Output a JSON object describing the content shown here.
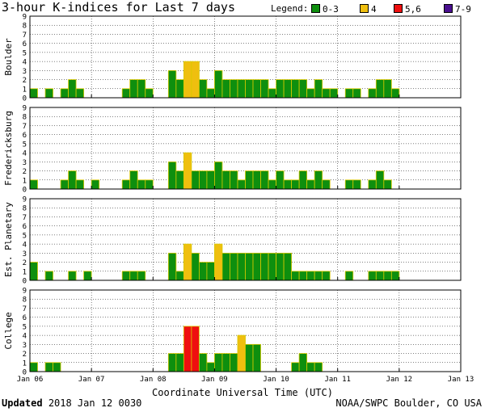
{
  "title": "3-hour K-indices for Last 7 days",
  "legend": {
    "label": "Legend:",
    "items": [
      {
        "text": "0-3",
        "color": "#0e8f0e"
      },
      {
        "text": "4",
        "color": "#efbf0f"
      },
      {
        "text": "5,6",
        "color": "#ef0f0f"
      },
      {
        "text": "7-9",
        "color": "#4a0f8f"
      }
    ]
  },
  "footer": {
    "updated_label": "Updated",
    "updated_value": "2018 Jan 12 0030",
    "credit": "NOAA/SWPC Boulder, CO USA"
  },
  "chart_data": {
    "type": "bar",
    "title": "3-hour K-indices for Last 7 days",
    "xlabel": "Coordinate Universal Time (UTC)",
    "ylim": [
      0,
      9
    ],
    "y_ticks": [
      "0",
      "1",
      "2",
      "3",
      "4",
      "5",
      "6",
      "7",
      "8",
      "9"
    ],
    "x_ticks": [
      "Jan 06",
      "Jan 07",
      "Jan 08",
      "Jan 09",
      "Jan 10",
      "Jan 11",
      "Jan 12",
      "Jan 13"
    ],
    "grid": true,
    "color_scale": [
      {
        "range": "0-3",
        "color": "#0e8f0e"
      },
      {
        "range": "4",
        "color": "#efbf0f"
      },
      {
        "range": "5,6",
        "color": "#ef0f0f"
      },
      {
        "range": "7-9",
        "color": "#4a0f8f"
      }
    ],
    "panels": [
      {
        "name": "Boulder",
        "values": [
          1,
          0,
          1,
          0,
          1,
          2,
          1,
          0,
          0,
          0,
          0,
          0,
          1,
          2,
          2,
          1,
          0,
          0,
          3,
          2,
          4,
          4,
          2,
          1,
          3,
          2,
          2,
          2,
          2,
          2,
          2,
          1,
          2,
          2,
          2,
          2,
          1,
          2,
          1,
          1,
          0,
          1,
          1,
          0,
          1,
          2,
          2,
          1
        ]
      },
      {
        "name": "Fredericksburg",
        "values": [
          1,
          0,
          0,
          0,
          1,
          2,
          1,
          0,
          1,
          0,
          0,
          0,
          1,
          2,
          1,
          1,
          0,
          0,
          3,
          2,
          4,
          2,
          2,
          2,
          3,
          2,
          2,
          1,
          2,
          2,
          2,
          1,
          2,
          1,
          1,
          2,
          1,
          2,
          1,
          0,
          0,
          1,
          1,
          0,
          1,
          2,
          1,
          0
        ]
      },
      {
        "name": "Est. Planetary",
        "values": [
          2,
          0,
          1,
          0,
          0,
          1,
          0,
          1,
          0,
          0,
          0,
          0,
          1,
          1,
          1,
          0,
          0,
          0,
          3,
          1,
          4,
          3,
          2,
          2,
          4,
          3,
          3,
          3,
          3,
          3,
          3,
          3,
          3,
          3,
          1,
          1,
          1,
          1,
          1,
          0,
          0,
          1,
          0,
          0,
          1,
          1,
          1,
          1
        ]
      },
      {
        "name": "College",
        "values": [
          1,
          0,
          1,
          1,
          0,
          0,
          0,
          0,
          0,
          0,
          0,
          0,
          0,
          0,
          0,
          0,
          0,
          0,
          2,
          2,
          5,
          5,
          2,
          1,
          2,
          2,
          2,
          4,
          3,
          3,
          0,
          0,
          0,
          0,
          1,
          2,
          1,
          1,
          0,
          0,
          0,
          0,
          0,
          0,
          0,
          0,
          0,
          0
        ]
      }
    ]
  }
}
